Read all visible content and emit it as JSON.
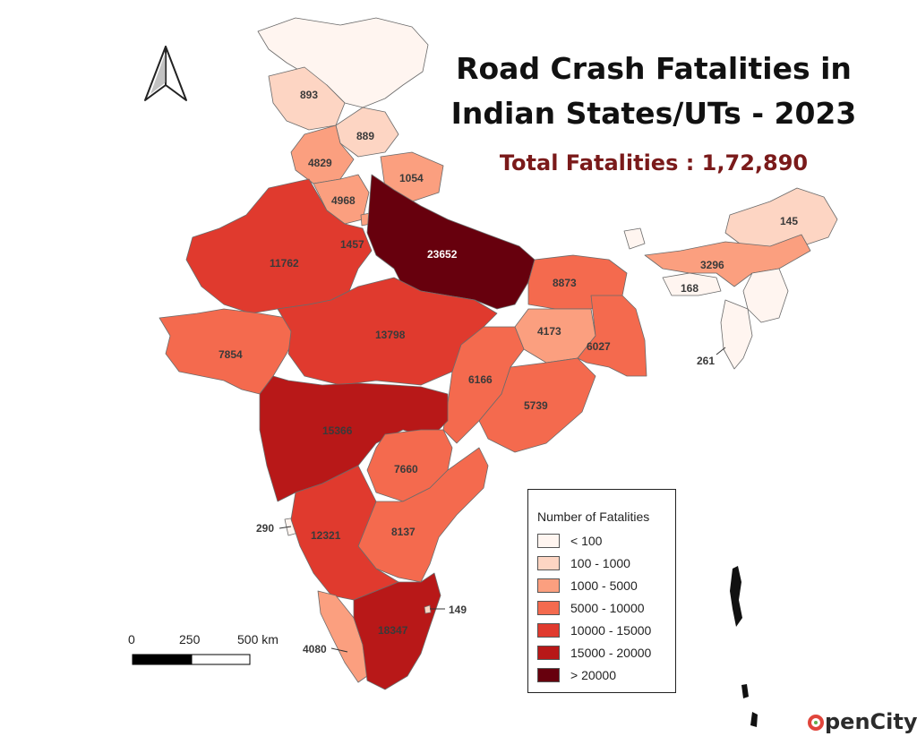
{
  "title": {
    "line1": "Road Crash Fatalities in",
    "line2": "Indian States/UTs - 2023"
  },
  "total": "Total Fatalities : 1,72,890",
  "north_arrow_icon": "north-arrow-icon",
  "legend": {
    "title": "Number of Fatalities",
    "items": [
      {
        "label": "< 100",
        "color": "#fff5f0"
      },
      {
        "label": "100 - 1000",
        "color": "#fdd5c3"
      },
      {
        "label": "1000 - 5000",
        "color": "#fb9f7f"
      },
      {
        "label": "5000 - 10000",
        "color": "#f46a4e"
      },
      {
        "label": "10000 - 15000",
        "color": "#e03a2e"
      },
      {
        "label": "15000 - 20000",
        "color": "#b81818"
      },
      {
        "label": "> 20000",
        "color": "#67000d"
      }
    ]
  },
  "scale_bar": {
    "labels": [
      "0",
      "250",
      "500 km"
    ]
  },
  "chart_data": {
    "type": "choropleth",
    "regions": [
      {
        "label": "893",
        "value": 893,
        "class": 1
      },
      {
        "label": "889",
        "value": 889,
        "class": 1
      },
      {
        "label": "4829",
        "value": 4829,
        "class": 2
      },
      {
        "label": "1054",
        "value": 1054,
        "class": 2
      },
      {
        "label": "4968",
        "value": 4968,
        "class": 2
      },
      {
        "label": "1457",
        "value": 1457,
        "class": 2
      },
      {
        "label": "11762",
        "value": 11762,
        "class": 4
      },
      {
        "label": "23652",
        "value": 23652,
        "class": 6
      },
      {
        "label": "8873",
        "value": 8873,
        "class": 3
      },
      {
        "label": "145",
        "value": 145,
        "class": 1
      },
      {
        "label": "3296",
        "value": 3296,
        "class": 2
      },
      {
        "label": "168",
        "value": 168,
        "class": 1
      },
      {
        "label": "261",
        "value": 261,
        "class": 1
      },
      {
        "label": "4173",
        "value": 4173,
        "class": 2
      },
      {
        "label": "6027",
        "value": 6027,
        "class": 3
      },
      {
        "label": "7854",
        "value": 7854,
        "class": 3
      },
      {
        "label": "13798",
        "value": 13798,
        "class": 4
      },
      {
        "label": "6166",
        "value": 6166,
        "class": 3
      },
      {
        "label": "5739",
        "value": 5739,
        "class": 3
      },
      {
        "label": "15366",
        "value": 15366,
        "class": 5
      },
      {
        "label": "7660",
        "value": 7660,
        "class": 3
      },
      {
        "label": "8137",
        "value": 8137,
        "class": 3
      },
      {
        "label": "290",
        "value": 290,
        "class": 1
      },
      {
        "label": "12321",
        "value": 12321,
        "class": 4
      },
      {
        "label": "18347",
        "value": 18347,
        "class": 5
      },
      {
        "label": "149",
        "value": 149,
        "class": 1
      },
      {
        "label": "4080",
        "value": 4080,
        "class": 2
      }
    ]
  },
  "logo": {
    "text": "penCity"
  }
}
